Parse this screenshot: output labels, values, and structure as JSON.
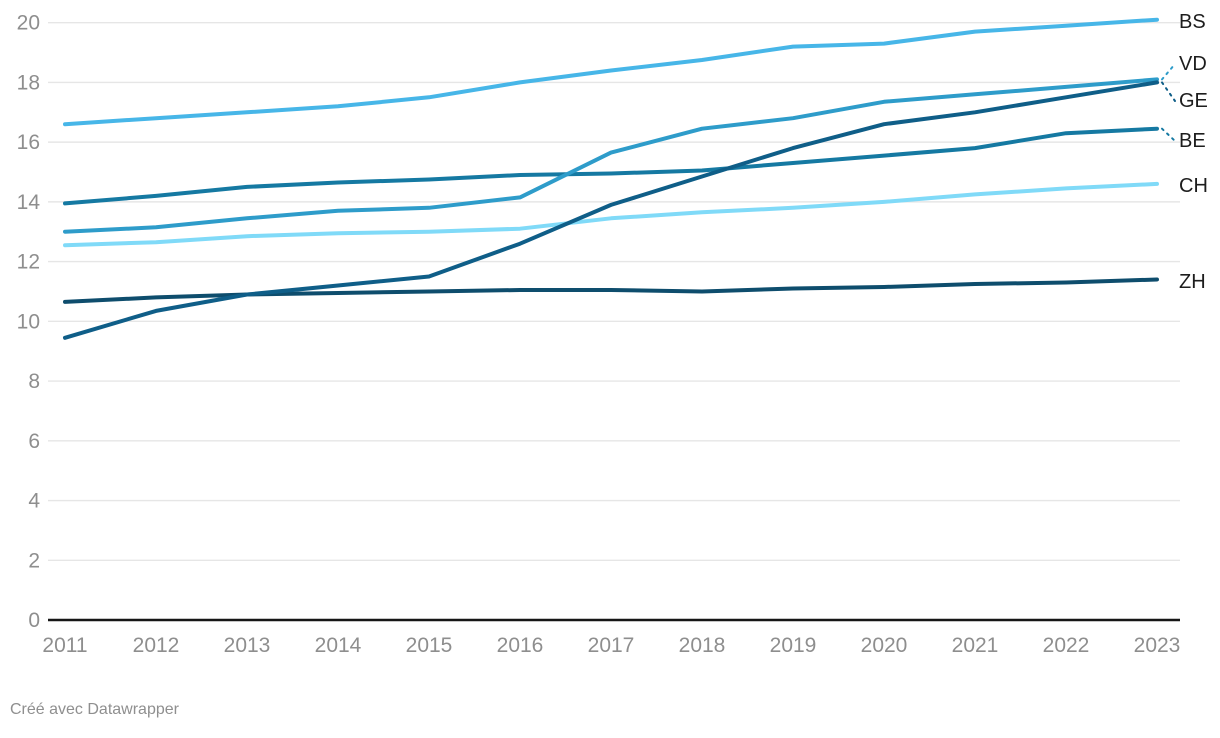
{
  "chart_data": {
    "type": "line",
    "x": [
      2011,
      2012,
      2013,
      2014,
      2015,
      2016,
      2017,
      2018,
      2019,
      2020,
      2021,
      2022,
      2023
    ],
    "series": [
      {
        "name": "BS",
        "color": "#47b6e8",
        "values": [
          16.6,
          16.8,
          17.0,
          17.2,
          17.5,
          18.0,
          18.4,
          18.75,
          19.2,
          19.3,
          19.7,
          19.9,
          20.1
        ]
      },
      {
        "name": "VD",
        "color": "#2e9cca",
        "values": [
          13.0,
          13.15,
          13.45,
          13.7,
          13.8,
          14.15,
          15.65,
          16.45,
          16.8,
          17.35,
          17.6,
          17.85,
          18.1
        ]
      },
      {
        "name": "GE",
        "color": "#0f5e88",
        "values": [
          9.45,
          10.35,
          10.9,
          11.2,
          11.5,
          12.6,
          13.9,
          14.85,
          15.8,
          16.6,
          17.0,
          17.5,
          18.0
        ]
      },
      {
        "name": "BE",
        "color": "#1579a2",
        "values": [
          13.95,
          14.2,
          14.5,
          14.65,
          14.75,
          14.9,
          14.95,
          15.05,
          15.3,
          15.55,
          15.8,
          16.3,
          16.45
        ]
      },
      {
        "name": "CH",
        "color": "#80daf8",
        "values": [
          12.55,
          12.65,
          12.85,
          12.95,
          13.0,
          13.1,
          13.45,
          13.65,
          13.8,
          14.0,
          14.25,
          14.45,
          14.6
        ]
      },
      {
        "name": "ZH",
        "color": "#0e4d6d",
        "values": [
          10.65,
          10.8,
          10.9,
          10.95,
          11.0,
          11.05,
          11.05,
          11.0,
          11.1,
          11.15,
          11.25,
          11.3,
          11.4
        ]
      }
    ],
    "ylim": [
      0,
      20
    ],
    "y_ticks": [
      0,
      2,
      4,
      6,
      8,
      10,
      12,
      14,
      16,
      18,
      20
    ],
    "grid": true,
    "legend_position": "right-edge-labels",
    "title": "",
    "xlabel": "",
    "ylabel": ""
  },
  "footer": {
    "credit": "Créé avec Datawrapper"
  }
}
